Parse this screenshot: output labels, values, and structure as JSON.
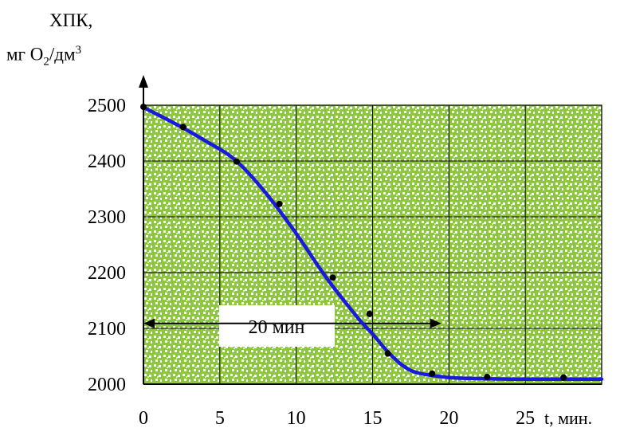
{
  "chart_data": {
    "type": "line",
    "ylabel_line1": "ХПК,",
    "ylabel_prefix": "мг O",
    "ylabel_sub": "2",
    "ylabel_mid": "/дм",
    "ylabel_sup": "3",
    "xlabel": "t, мин.",
    "x_ticks": [
      "0",
      "5",
      "10",
      "15",
      "20",
      "25"
    ],
    "y_ticks": [
      "2500",
      "2400",
      "2300",
      "2200",
      "2100",
      "2000"
    ],
    "xlim": [
      0,
      30
    ],
    "ylim": [
      2000,
      2500
    ],
    "grid": true,
    "points": {
      "x": [
        0,
        2.6,
        6.1,
        8.9,
        12.4,
        14.8,
        16.0,
        18.9,
        22.5,
        27.5
      ],
      "y": [
        2497,
        2461,
        2399,
        2323,
        2191,
        2126,
        2055,
        2019,
        2013,
        2012
      ]
    },
    "curve": {
      "x": [
        0,
        2,
        4,
        6,
        8,
        10,
        12,
        14,
        15,
        16,
        17,
        18,
        20,
        22,
        24,
        26,
        28,
        30
      ],
      "y": [
        2496,
        2468,
        2437,
        2402,
        2343,
        2270,
        2190,
        2120,
        2090,
        2058,
        2033,
        2020,
        2012,
        2010,
        2009,
        2009,
        2009,
        2009
      ]
    },
    "annotation": {
      "text": "20 мин",
      "x_start": 0,
      "x_end": 19.5,
      "y": 2066
    },
    "colors": {
      "background": "#8dc63f",
      "pattern": "#ffffff",
      "curve": "#1a1adb",
      "points": "#000000",
      "grid": "#000000"
    }
  }
}
